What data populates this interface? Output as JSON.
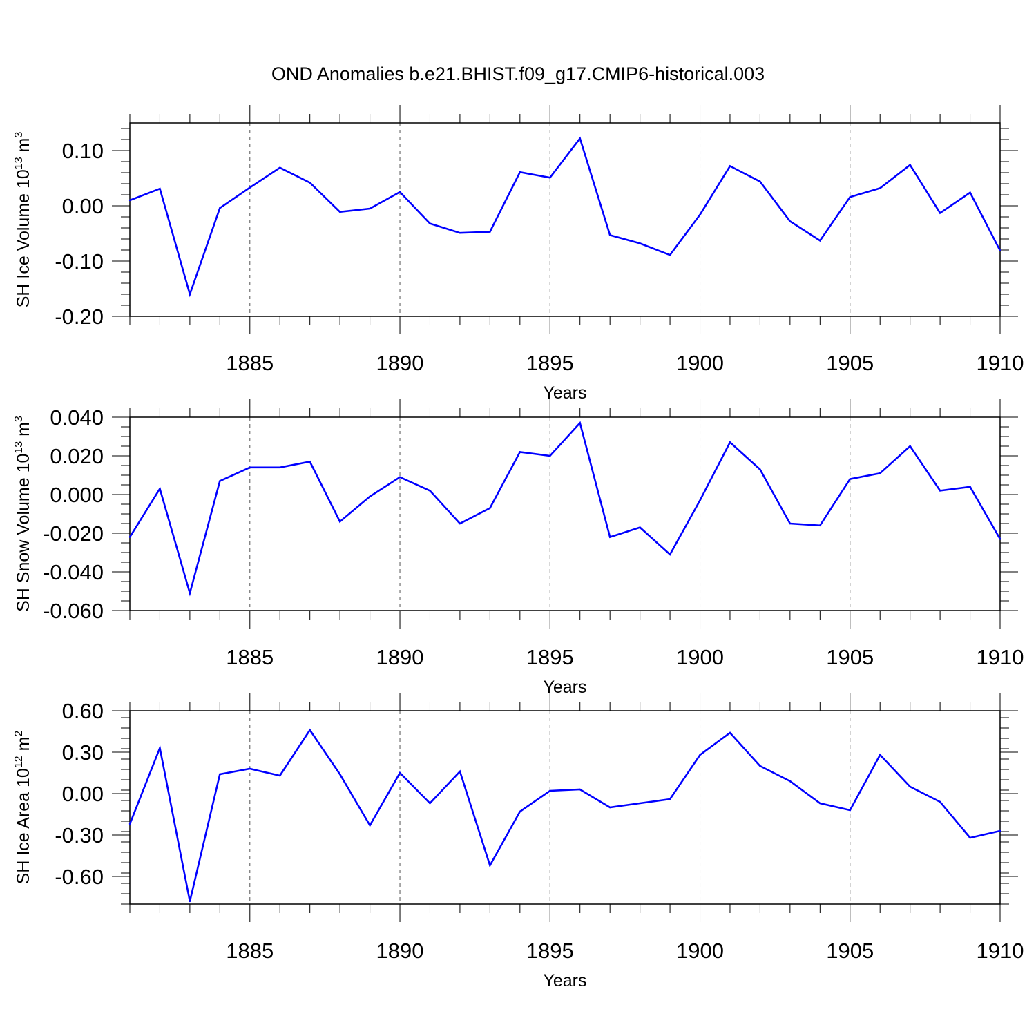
{
  "title": "OND Anomalies b.e21.BHIST.f09_g17.CMIP6-historical.003",
  "line_color": "#0000ff",
  "chart_data": [
    {
      "type": "line",
      "ylabel_main": "SH Ice Volume 10",
      "ylabel_exp": "13",
      "ylabel_unit": " m",
      "ylabel_unit_exp": "3",
      "xlabel": "Years",
      "xlim": [
        1881,
        1910
      ],
      "ylim": [
        -0.2,
        0.15
      ],
      "yticks": [
        -0.2,
        -0.1,
        0.0,
        0.1
      ],
      "ytick_labels": [
        "-0.20",
        "-0.10",
        "0.00",
        "0.10"
      ],
      "yminor_step": 0.02,
      "xticks": [
        1885,
        1890,
        1895,
        1900,
        1905,
        1910
      ],
      "xtick_labels": [
        "1885",
        "1890",
        "1895",
        "1900",
        "1905",
        "1910"
      ],
      "x": [
        1881,
        1882,
        1883,
        1884,
        1885,
        1886,
        1887,
        1888,
        1889,
        1890,
        1891,
        1892,
        1893,
        1894,
        1895,
        1896,
        1897,
        1898,
        1899,
        1900,
        1901,
        1902,
        1903,
        1904,
        1905,
        1906,
        1907,
        1908,
        1909,
        1910
      ],
      "values": [
        0.01,
        0.031,
        -0.16,
        -0.004,
        0.033,
        0.069,
        0.042,
        -0.011,
        -0.005,
        0.025,
        -0.032,
        -0.049,
        -0.047,
        0.061,
        0.051,
        0.122,
        -0.053,
        -0.068,
        -0.089,
        -0.016,
        0.072,
        0.044,
        -0.028,
        -0.063,
        0.016,
        0.032,
        0.074,
        -0.013,
        0.024,
        -0.081
      ]
    },
    {
      "type": "line",
      "ylabel_main": "SH Snow Volume 10",
      "ylabel_exp": "13",
      "ylabel_unit": " m",
      "ylabel_unit_exp": "3",
      "xlabel": "Years",
      "xlim": [
        1881,
        1910
      ],
      "ylim": [
        -0.06,
        0.04
      ],
      "yticks": [
        -0.06,
        -0.04,
        -0.02,
        0.0,
        0.02,
        0.04
      ],
      "ytick_labels": [
        "-0.060",
        "-0.040",
        "-0.020",
        "0.000",
        "0.020",
        "0.040"
      ],
      "yminor_step": 0.005,
      "xticks": [
        1885,
        1890,
        1895,
        1900,
        1905,
        1910
      ],
      "xtick_labels": [
        "1885",
        "1890",
        "1895",
        "1900",
        "1905",
        "1910"
      ],
      "x": [
        1881,
        1882,
        1883,
        1884,
        1885,
        1886,
        1887,
        1888,
        1889,
        1890,
        1891,
        1892,
        1893,
        1894,
        1895,
        1896,
        1897,
        1898,
        1899,
        1900,
        1901,
        1902,
        1903,
        1904,
        1905,
        1906,
        1907,
        1908,
        1909,
        1910
      ],
      "values": [
        -0.022,
        0.003,
        -0.051,
        0.007,
        0.014,
        0.014,
        0.017,
        -0.014,
        -0.001,
        0.009,
        0.002,
        -0.015,
        -0.007,
        0.022,
        0.02,
        0.037,
        -0.022,
        -0.017,
        -0.031,
        -0.003,
        0.027,
        0.013,
        -0.015,
        -0.016,
        0.008,
        0.011,
        0.025,
        0.002,
        0.004,
        -0.023
      ]
    },
    {
      "type": "line",
      "ylabel_main": "SH Ice Area 10",
      "ylabel_exp": "12",
      "ylabel_unit": " m",
      "ylabel_unit_exp": "2",
      "xlabel": "Years",
      "xlim": [
        1881,
        1910
      ],
      "ylim": [
        -0.8,
        0.6
      ],
      "yticks": [
        -0.6,
        -0.3,
        0.0,
        0.3,
        0.6
      ],
      "ytick_labels": [
        "-0.60",
        "-0.30",
        "0.00",
        "0.30",
        "0.60"
      ],
      "yminor_step": 0.075,
      "xticks": [
        1885,
        1890,
        1895,
        1900,
        1905,
        1910
      ],
      "xtick_labels": [
        "1885",
        "1890",
        "1895",
        "1900",
        "1905",
        "1910"
      ],
      "x": [
        1881,
        1882,
        1883,
        1884,
        1885,
        1886,
        1887,
        1888,
        1889,
        1890,
        1891,
        1892,
        1893,
        1894,
        1895,
        1896,
        1897,
        1898,
        1899,
        1900,
        1901,
        1902,
        1903,
        1904,
        1905,
        1906,
        1907,
        1908,
        1909,
        1910
      ],
      "values": [
        -0.22,
        0.33,
        -0.78,
        0.14,
        0.18,
        0.13,
        0.46,
        0.14,
        -0.23,
        0.15,
        -0.07,
        0.16,
        -0.52,
        -0.13,
        0.02,
        0.03,
        -0.1,
        -0.07,
        -0.04,
        0.28,
        0.44,
        0.2,
        0.09,
        -0.07,
        -0.12,
        0.28,
        0.05,
        -0.06,
        -0.32,
        -0.27
      ]
    }
  ]
}
